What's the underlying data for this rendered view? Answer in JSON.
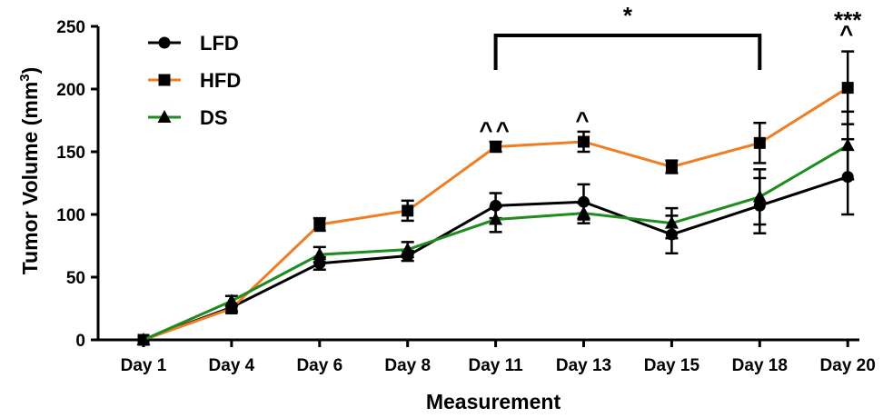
{
  "chart_data": {
    "type": "line",
    "xlabel": "Measurement",
    "ylabel": "Tumor Volume (mm",
    "ylabel_sup": "3",
    "ylabel_close": ")",
    "categories": [
      "Day 1",
      "Day 4",
      "Day 6",
      "Day 8",
      "Day 11",
      "Day 13",
      "Day 15",
      "Day 18",
      "Day 20"
    ],
    "ylim": [
      0,
      250
    ],
    "yticks": [
      0,
      50,
      100,
      150,
      200,
      250
    ],
    "legend_position": "top-left",
    "series": [
      {
        "name": "LFD",
        "color": "#000000",
        "marker": "circle",
        "values": [
          0,
          26,
          61,
          67,
          107,
          110,
          84,
          107,
          130
        ],
        "errors": [
          0,
          3,
          5,
          4,
          10,
          14,
          15,
          22,
          30
        ]
      },
      {
        "name": "HFD",
        "color": "#f07d23",
        "marker": "square",
        "values": [
          0,
          25,
          92,
          103,
          154,
          158,
          138,
          157,
          201
        ],
        "errors": [
          0,
          3,
          5,
          8,
          4,
          8,
          5,
          16,
          29
        ]
      },
      {
        "name": "DS",
        "color": "#1e8c1e",
        "marker": "triangle",
        "values": [
          0,
          31,
          68,
          72,
          96,
          101,
          93,
          114,
          155
        ],
        "errors": [
          0,
          4,
          6,
          6,
          10,
          8,
          12,
          22,
          27
        ]
      }
    ],
    "annotations": [
      {
        "text": "^^",
        "category_index": 4
      },
      {
        "text": "^",
        "category_index": 5
      },
      {
        "text": "^",
        "category_index": 8
      },
      {
        "text": "***",
        "category_index": 8
      }
    ],
    "bracket": {
      "from_index": 4,
      "to_index": 7,
      "text": "*"
    }
  }
}
